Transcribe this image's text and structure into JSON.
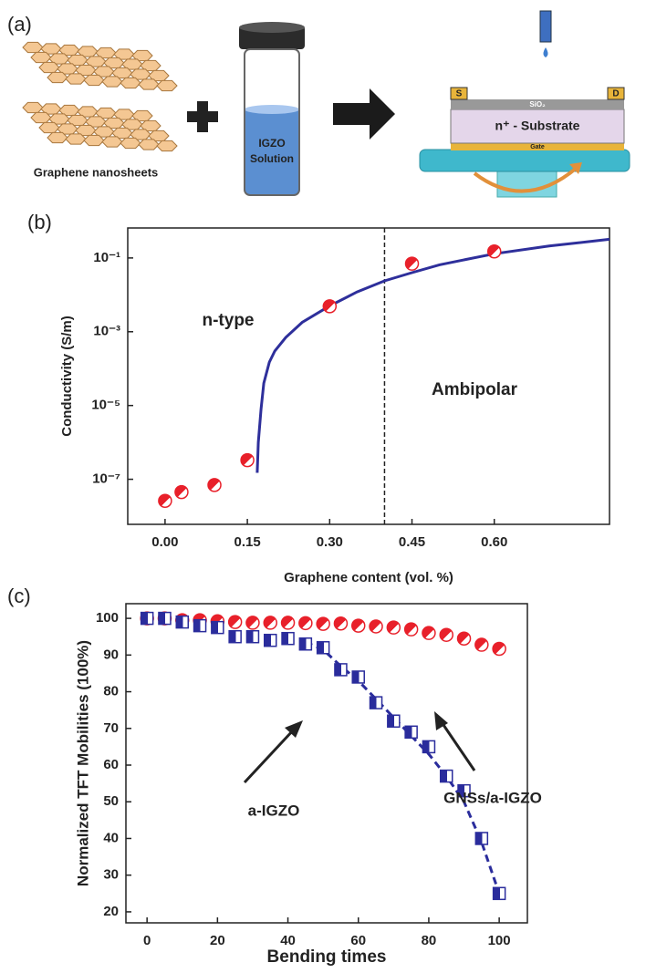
{
  "panel_a": {
    "label": "(a)",
    "graphene_caption": "Graphene nanosheets",
    "vial_label": [
      "IGZO",
      "Solution"
    ],
    "device": {
      "source": "S",
      "drain": "D",
      "oxide": "SiO₂",
      "substrate": "n⁺ - Substrate",
      "gate": "Gate"
    }
  },
  "chart_data": [
    {
      "type": "scatter",
      "panel_label": "(b)",
      "xlabel": "Graphene content (vol. %)",
      "ylabel": "Conductivity (S/m)",
      "xlim": [
        -0.068,
        0.81
      ],
      "xticks": [
        {
          "value": 0,
          "label": "0.00"
        },
        0.15,
        {
          "value": 0.3,
          "label": "0.30"
        },
        0.45,
        {
          "value": 0.6,
          "label": "0.60"
        }
      ],
      "ylog": true,
      "ylim": [
        6e-09,
        0.65
      ],
      "yticks": [
        {
          "value": 0.1,
          "label": "10⁻¹"
        },
        {
          "value": 0.001,
          "label": "10⁻³"
        },
        {
          "value": 1e-05,
          "label": "10⁻⁵"
        },
        {
          "value": 1e-07,
          "label": "10⁻⁷"
        }
      ],
      "series": [
        {
          "color": "#e8202a",
          "marker": "circle",
          "x": [
            0,
            0.03,
            0.09,
            0.15,
            0.3,
            0.45,
            0.6
          ],
          "values": [
            2.6e-08,
            4.5e-08,
            7e-08,
            3.3e-07,
            0.0049,
            0.07,
            0.15
          ]
        }
      ],
      "fit": {
        "color": "#2e2f9b",
        "dashed": false,
        "x": [
          0.168,
          0.17,
          0.175,
          0.18,
          0.19,
          0.2,
          0.22,
          0.25,
          0.3,
          0.35,
          0.4,
          0.45,
          0.5,
          0.6,
          0.7,
          0.81
        ],
        "values": [
          1.5e-07,
          1e-06,
          8e-06,
          4e-05,
          0.00015,
          0.0003,
          0.0007,
          0.0018,
          0.005,
          0.012,
          0.024,
          0.04,
          0.065,
          0.13,
          0.21,
          0.32
        ]
      },
      "vline": 0.4,
      "annotations": [
        "n-type",
        "Ambipolar"
      ]
    },
    {
      "type": "scatter",
      "panel_label": "(c)",
      "xlabel": "Bending times",
      "ylabel": "Normalized TFT Mobilities (100%)",
      "xlim": [
        -6,
        108
      ],
      "xticks": [
        0,
        20,
        40,
        60,
        80,
        100
      ],
      "ylog": false,
      "ylim": [
        17,
        104
      ],
      "yticks": [
        20,
        30,
        40,
        50,
        60,
        70,
        80,
        90,
        100
      ],
      "series": [
        {
          "name": "GNSs/a-IGZO",
          "color": "#e8202a",
          "marker": "circle",
          "x": [
            0,
            5,
            10,
            15,
            20,
            25,
            30,
            35,
            40,
            45,
            50,
            55,
            60,
            65,
            70,
            75,
            80,
            85,
            90,
            95,
            100
          ],
          "values": [
            100,
            100,
            99.5,
            99.5,
            99.2,
            99,
            98.8,
            98.8,
            98.8,
            98.7,
            98.5,
            98.6,
            98,
            97.8,
            97.5,
            97,
            96,
            95.5,
            94.5,
            92.8,
            91.7
          ]
        },
        {
          "name": "a-IGZO",
          "color": "#2a2c9c",
          "marker": "square",
          "x": [
            0,
            5,
            10,
            15,
            20,
            25,
            30,
            35,
            40,
            45,
            50,
            55,
            60,
            65,
            70,
            75,
            80,
            85,
            90,
            95,
            100
          ],
          "values": [
            100,
            100,
            99,
            98,
            97.5,
            95,
            95,
            94,
            94.5,
            93,
            92,
            86,
            84,
            77,
            72,
            69,
            65,
            57,
            53,
            40,
            25
          ]
        }
      ],
      "fit": {
        "color": "#2a2c9c",
        "dashed": true,
        "x": [
          45,
          50,
          55,
          60,
          65,
          70,
          75,
          80,
          85,
          90,
          95,
          100
        ],
        "values": [
          93.5,
          91.5,
          87,
          83,
          78,
          73,
          68,
          63,
          57,
          50,
          39,
          25
        ]
      }
    }
  ]
}
